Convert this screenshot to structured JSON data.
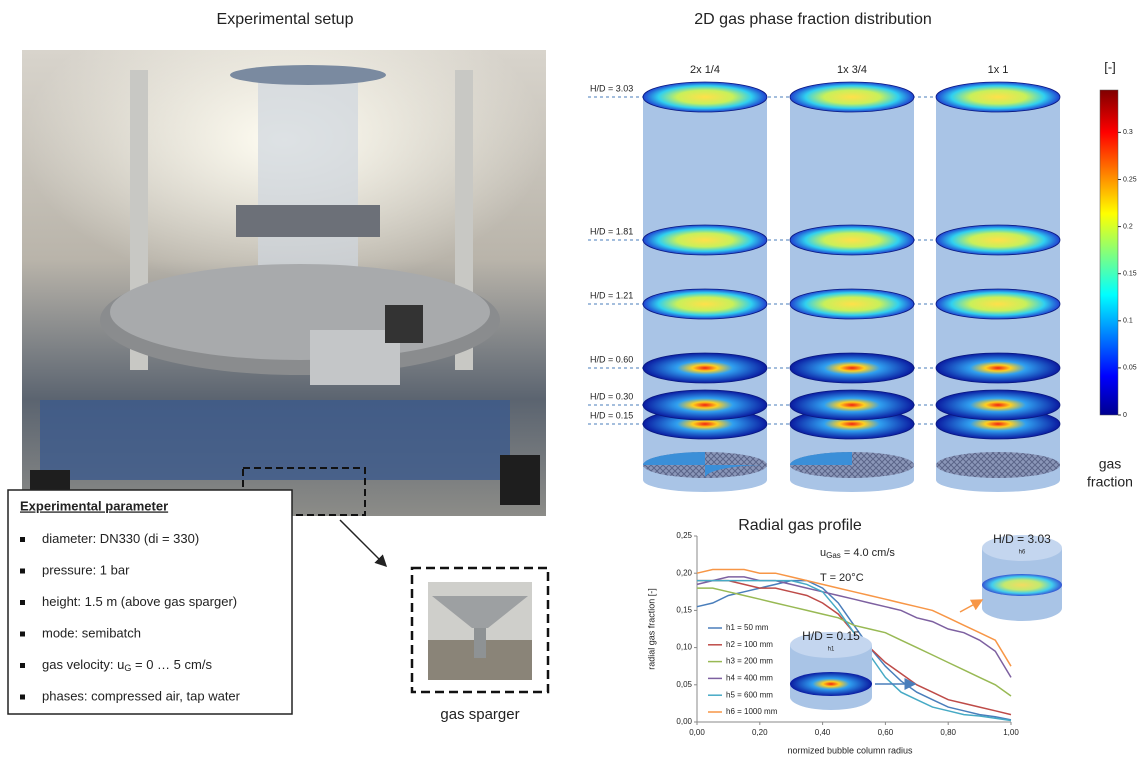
{
  "setup": {
    "title": "Experimental setup",
    "parameters": {
      "title": "Experimental parameter",
      "items": [
        [
          "diameter: DN330 (di = 330)"
        ],
        [
          "pressure:  1 bar"
        ],
        [
          "height: 1.5 m (above gas sparger)"
        ],
        [
          "mode: semibatch"
        ],
        [
          "gas velocity: u",
          "G",
          " = 0 … 5 cm/s"
        ],
        [
          "phases: compressed air, tap water"
        ]
      ]
    },
    "sparger_caption": "gas sparger"
  },
  "distribution": {
    "title": "2D gas phase fraction distribution",
    "columns": [
      "2x 1/4",
      "1x 3/4",
      "1x 1"
    ],
    "levels": [
      "H/D = 3.03",
      "H/D = 1.81",
      "H/D = 1.21",
      "H/D = 0.60",
      "H/D = 0.30",
      "H/D = 0.15"
    ],
    "colorbar": {
      "unit": "[-]",
      "label": [
        "gas",
        "fraction"
      ],
      "lim": [
        0,
        0.345
      ],
      "ticks": [
        0,
        0.05,
        0.1,
        0.15,
        0.2,
        0.25,
        0.3
      ]
    }
  },
  "chart_data": {
    "type": "line",
    "title": "Radial gas profile",
    "xlabel": "normized bubble column radius",
    "ylabel": "radial gas fraction [-]",
    "annotations": {
      "velocity": [
        "u",
        "Gas",
        " = 4.0 cm/s"
      ],
      "temperature": "T = 20°C",
      "inset_top": [
        "H/D = 3.03",
        "h6"
      ],
      "inset_bottom": [
        "H/D = 0.15",
        "h1"
      ]
    },
    "x": [
      0,
      0.05,
      0.1,
      0.15,
      0.2,
      0.25,
      0.3,
      0.35,
      0.4,
      0.45,
      0.5,
      0.55,
      0.6,
      0.65,
      0.7,
      0.75,
      0.8,
      0.85,
      0.9,
      0.95,
      1.0
    ],
    "xlim": [
      0,
      1
    ],
    "ylim": [
      0,
      0.25
    ],
    "xticks": [
      {
        "value": 0,
        "label": "0,00"
      },
      {
        "value": 0.2,
        "label": "0,20"
      },
      {
        "value": 0.4,
        "label": "0,40"
      },
      {
        "value": 0.6,
        "label": "0,60"
      },
      {
        "value": 0.8,
        "label": "0,80"
      },
      {
        "value": 1.0,
        "label": "1,00"
      }
    ],
    "yticks": [
      {
        "value": 0,
        "label": "0,00"
      },
      {
        "value": 0.05,
        "label": "0,05"
      },
      {
        "value": 0.1,
        "label": "0,10"
      },
      {
        "value": 0.15,
        "label": "0,15"
      },
      {
        "value": 0.2,
        "label": "0,20"
      },
      {
        "value": 0.25,
        "label": "0,25"
      }
    ],
    "series": [
      {
        "name": "h1 = 50 mm",
        "color": "#4a7ebb",
        "values": [
          0.155,
          0.16,
          0.17,
          0.175,
          0.18,
          0.185,
          0.19,
          0.19,
          0.18,
          0.16,
          0.13,
          0.1,
          0.075,
          0.055,
          0.04,
          0.03,
          0.02,
          0.015,
          0.01,
          0.007,
          0.003
        ]
      },
      {
        "name": "h2 = 100 mm",
        "color": "#be4b48",
        "values": [
          0.19,
          0.19,
          0.19,
          0.185,
          0.18,
          0.18,
          0.175,
          0.17,
          0.16,
          0.145,
          0.12,
          0.1,
          0.08,
          0.065,
          0.05,
          0.04,
          0.03,
          0.025,
          0.02,
          0.015,
          0.01
        ]
      },
      {
        "name": "h3 = 200 mm",
        "color": "#98b954",
        "values": [
          0.18,
          0.18,
          0.175,
          0.17,
          0.165,
          0.16,
          0.155,
          0.15,
          0.145,
          0.14,
          0.13,
          0.125,
          0.12,
          0.11,
          0.1,
          0.09,
          0.08,
          0.07,
          0.06,
          0.05,
          0.035
        ]
      },
      {
        "name": "h4 = 400 mm",
        "color": "#7d60a0",
        "values": [
          0.185,
          0.19,
          0.195,
          0.195,
          0.19,
          0.19,
          0.185,
          0.18,
          0.175,
          0.17,
          0.165,
          0.16,
          0.155,
          0.15,
          0.14,
          0.135,
          0.125,
          0.12,
          0.11,
          0.095,
          0.06
        ]
      },
      {
        "name": "h5 = 600 mm",
        "color": "#46aac5",
        "values": [
          0.19,
          0.19,
          0.19,
          0.19,
          0.19,
          0.19,
          0.19,
          0.185,
          0.175,
          0.15,
          0.12,
          0.09,
          0.06,
          0.04,
          0.03,
          0.02,
          0.015,
          0.01,
          0.008,
          0.005,
          0.002
        ]
      },
      {
        "name": "h6 = 1000 mm",
        "color": "#f79646",
        "values": [
          0.2,
          0.205,
          0.205,
          0.205,
          0.2,
          0.2,
          0.195,
          0.19,
          0.185,
          0.18,
          0.175,
          0.17,
          0.165,
          0.16,
          0.155,
          0.15,
          0.14,
          0.13,
          0.12,
          0.11,
          0.075
        ]
      }
    ]
  }
}
